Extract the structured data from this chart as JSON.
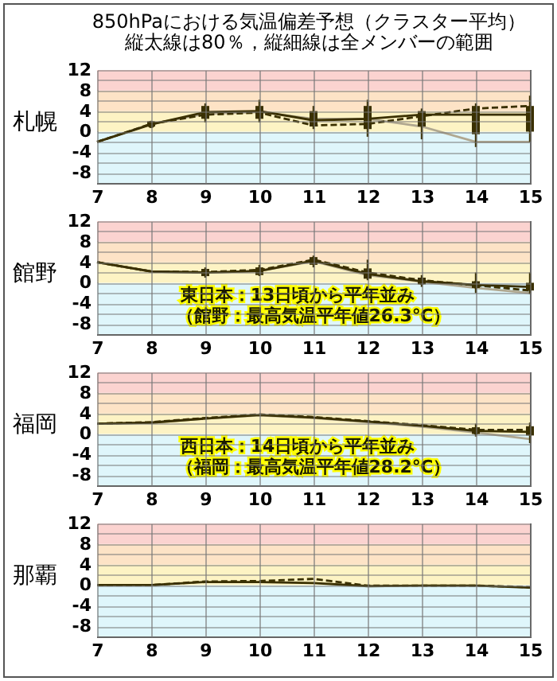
{
  "chart_data": [
    {
      "type": "line",
      "title": "850hPaにおける気温偏差予想（クラスター平均）",
      "subtitle": "縦太線は80％，縦細線は全メンバーの範囲",
      "ylabel": "札幌",
      "categories": [
        "7",
        "8",
        "9",
        "10",
        "11",
        "12",
        "13",
        "14",
        "15"
      ],
      "ylim": [
        -10,
        12
      ],
      "yticks": [
        {
          "value": -10,
          "label": null
        },
        -8,
        {
          "value": -6,
          "label": null
        },
        -4,
        {
          "value": -2,
          "label": null
        },
        0,
        {
          "value": 2,
          "label": null
        },
        4,
        {
          "value": 6,
          "label": null
        },
        8,
        {
          "value": 10,
          "label": null
        },
        12
      ],
      "grid": true,
      "bands": [
        {
          "axis": "y",
          "from": -10,
          "to": 0,
          "color": "#dff6fb"
        },
        {
          "axis": "y",
          "from": 0,
          "to": 4,
          "color": "#fdf3c4"
        },
        {
          "axis": "y",
          "from": 4,
          "to": 8,
          "color": "#fde3c6"
        },
        {
          "axis": "y",
          "from": 8,
          "to": 12,
          "color": "#fbd3d0"
        }
      ],
      "series": [
        {
          "type": "line",
          "color": "#b0a890",
          "values": [
            -2,
            1.5,
            3.5,
            3.8,
            2.5,
            2.5,
            1,
            -2,
            -2
          ]
        },
        {
          "type": "line",
          "color": "#3a3000",
          "line_style": "dashed",
          "values": [
            -2,
            1.5,
            3.3,
            3.7,
            1.2,
            1.5,
            3,
            4.5,
            5
          ]
        },
        {
          "type": "line",
          "color": "#3a3000",
          "values": [
            -2,
            1.4,
            3.8,
            4,
            2.2,
            2.5,
            3.3,
            3.3,
            3.3
          ]
        },
        {
          "type": "box",
          "color": "#3a3000",
          "boxes": [
            null,
            {
              "low": 1,
              "q1": 1,
              "median": 1.4,
              "q3": 2,
              "high": 2
            },
            {
              "low": 1.8,
              "q1": 2.5,
              "median": 3.8,
              "q3": 5,
              "high": 5.5
            },
            {
              "low": 1.8,
              "q1": 2.5,
              "median": 4,
              "q3": 5,
              "high": 6.2
            },
            {
              "low": 0.5,
              "q1": 1,
              "median": 2.2,
              "q3": 4,
              "high": 5
            },
            {
              "low": -1,
              "q1": 0.5,
              "median": 2.5,
              "q3": 5,
              "high": 6.2
            },
            {
              "low": -1.5,
              "q1": 1,
              "median": 3.3,
              "q3": 4,
              "high": 4.5
            },
            {
              "low": -3,
              "q1": -0.5,
              "median": 3.3,
              "q3": 5,
              "high": 5.5
            },
            {
              "low": -2,
              "q1": 0,
              "median": 3.3,
              "q3": 5,
              "high": 7
            }
          ]
        }
      ]
    },
    {
      "type": "line",
      "ylabel": "館野",
      "categories": [
        "7",
        "8",
        "9",
        "10",
        "11",
        "12",
        "13",
        "14",
        "15"
      ],
      "ylim": [
        -10,
        12
      ],
      "yticks": [
        {
          "value": -10,
          "label": null
        },
        -8,
        {
          "value": -6,
          "label": null
        },
        -4,
        {
          "value": -2,
          "label": null
        },
        0,
        {
          "value": 2,
          "label": null
        },
        4,
        {
          "value": 6,
          "label": null
        },
        8,
        {
          "value": 10,
          "label": null
        },
        12
      ],
      "grid": true,
      "bands": [
        {
          "axis": "y",
          "from": -10,
          "to": 0,
          "color": "#dff6fb"
        },
        {
          "axis": "y",
          "from": 0,
          "to": 4,
          "color": "#fdf3c4"
        },
        {
          "axis": "y",
          "from": 4,
          "to": 8,
          "color": "#fde3c6"
        },
        {
          "axis": "y",
          "from": 8,
          "to": 12,
          "color": "#fbd3d0"
        }
      ],
      "annotations": [
        "東日本：13日頃から平年並み",
        "（館野：最高気温平年値26.3℃）"
      ],
      "series": [
        {
          "type": "line",
          "color": "#b0a890",
          "values": [
            4,
            2.2,
            2,
            2.3,
            4.2,
            1.5,
            0.2,
            -1,
            -2
          ]
        },
        {
          "type": "line",
          "color": "#3a3000",
          "line_style": "dashed",
          "values": [
            4,
            2.2,
            2.1,
            2.5,
            4.5,
            2,
            0.5,
            -0.5,
            -1.5
          ]
        },
        {
          "type": "line",
          "color": "#3a3000",
          "values": [
            4,
            2.2,
            2,
            2.3,
            4.3,
            1.7,
            0.3,
            -0.4,
            -0.8
          ]
        },
        {
          "type": "box",
          "color": "#3a3000",
          "boxes": [
            null,
            null,
            {
              "low": 1,
              "q1": 1.3,
              "median": 2,
              "q3": 2.7,
              "high": 3
            },
            {
              "low": 1.3,
              "q1": 1.5,
              "median": 2.3,
              "q3": 3,
              "high": 3.5
            },
            {
              "low": 3,
              "q1": 3.5,
              "median": 4.3,
              "q3": 5,
              "high": 5.3
            },
            {
              "low": 0.5,
              "q1": 0.8,
              "median": 1.7,
              "q3": 2.8,
              "high": 4.5
            },
            {
              "low": -0.8,
              "q1": -0.3,
              "median": 0.3,
              "q3": 1,
              "high": 1.5
            },
            {
              "low": -2,
              "q1": -1,
              "median": -0.4,
              "q3": 0.3,
              "high": 2
            },
            {
              "low": -2.2,
              "q1": -1.5,
              "median": -0.8,
              "q3": 0,
              "high": 2
            }
          ]
        }
      ]
    },
    {
      "type": "line",
      "ylabel": "福岡",
      "categories": [
        "7",
        "8",
        "9",
        "10",
        "11",
        "12",
        "13",
        "14",
        "15"
      ],
      "ylim": [
        -10,
        12
      ],
      "yticks": [
        {
          "value": -10,
          "label": null
        },
        -8,
        {
          "value": -6,
          "label": null
        },
        -4,
        {
          "value": -2,
          "label": null
        },
        0,
        {
          "value": 2,
          "label": null
        },
        4,
        {
          "value": 6,
          "label": null
        },
        8,
        {
          "value": 10,
          "label": null
        },
        12
      ],
      "grid": true,
      "bands": [
        {
          "axis": "y",
          "from": -10,
          "to": 0,
          "color": "#dff6fb"
        },
        {
          "axis": "y",
          "from": 0,
          "to": 4,
          "color": "#fdf3c4"
        },
        {
          "axis": "y",
          "from": 4,
          "to": 8,
          "color": "#fde3c6"
        },
        {
          "axis": "y",
          "from": 8,
          "to": 12,
          "color": "#fbd3d0"
        }
      ],
      "annotations": [
        "西日本：14日頃から平年並み",
        "（福岡：最高気温平年値28.2℃）"
      ],
      "series": [
        {
          "type": "line",
          "color": "#b0a890",
          "values": [
            2,
            2.2,
            3,
            3.6,
            3.1,
            2.3,
            1.4,
            0.3,
            -1
          ]
        },
        {
          "type": "line",
          "color": "#3a3000",
          "line_style": "dashed",
          "values": [
            2,
            2.3,
            3.1,
            3.8,
            3.3,
            2.5,
            1.7,
            0.8,
            0.8
          ]
        },
        {
          "type": "line",
          "color": "#3a3000",
          "values": [
            2,
            2.2,
            3,
            3.7,
            3.2,
            2.4,
            1.6,
            0.6,
            0.4
          ]
        },
        {
          "type": "box",
          "color": "#3a3000",
          "boxes": [
            null,
            null,
            null,
            null,
            null,
            null,
            null,
            {
              "low": -0.5,
              "q1": 0,
              "median": 0.6,
              "q3": 1.3,
              "high": 2
            },
            {
              "low": -1.8,
              "q1": -0.3,
              "median": 0.4,
              "q3": 1.5,
              "high": 2.2
            }
          ]
        }
      ]
    },
    {
      "type": "line",
      "ylabel": "那覇",
      "categories": [
        "7",
        "8",
        "9",
        "10",
        "11",
        "12",
        "13",
        "14",
        "15"
      ],
      "ylim": [
        -10,
        12
      ],
      "yticks": [
        {
          "value": -10,
          "label": null
        },
        -8,
        {
          "value": -6,
          "label": null
        },
        -4,
        {
          "value": -2,
          "label": null
        },
        0,
        {
          "value": 2,
          "label": null
        },
        4,
        {
          "value": 6,
          "label": null
        },
        8,
        {
          "value": 10,
          "label": null
        },
        12
      ],
      "grid": true,
      "bands": [
        {
          "axis": "y",
          "from": -10,
          "to": 0,
          "color": "#dff6fb"
        },
        {
          "axis": "y",
          "from": 0,
          "to": 4,
          "color": "#fdf3c4"
        },
        {
          "axis": "y",
          "from": 4,
          "to": 8,
          "color": "#fde3c6"
        },
        {
          "axis": "y",
          "from": 8,
          "to": 12,
          "color": "#fbd3d0"
        }
      ],
      "series": [
        {
          "type": "line",
          "color": "#3a3000",
          "line_style": "dashed",
          "values": [
            0,
            0,
            0.7,
            0.8,
            1.2,
            -0.1,
            -0.1,
            -0.1,
            -0.4
          ]
        },
        {
          "type": "line",
          "color": "#3a3000",
          "values": [
            0,
            0,
            0.6,
            0.6,
            0.4,
            -0.2,
            -0.1,
            -0.1,
            -0.5
          ]
        }
      ]
    }
  ]
}
